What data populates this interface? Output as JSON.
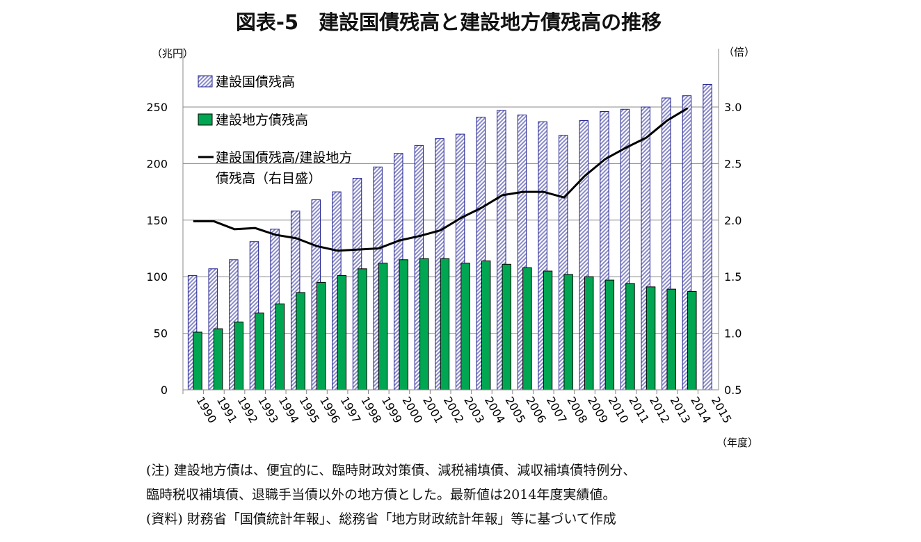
{
  "chart_data": {
    "type": "bar",
    "title": "図表-5　建設国債残高と建設地方債残高の推移",
    "ylabel_left": "（兆円）",
    "ylabel_right": "（倍）",
    "xlabel": "（年度）",
    "ylim": [
      0,
      300
    ],
    "yticks": [
      0,
      50,
      100,
      150,
      200,
      250
    ],
    "ylim_right": [
      0.5,
      3.5
    ],
    "yticks_right": [
      "0.5",
      "1.0",
      "1.5",
      "2.0",
      "2.5",
      "3.0"
    ],
    "grid": true,
    "legend_position": "top-left",
    "categories": [
      "1990",
      "1991",
      "1992",
      "1993",
      "1994",
      "1995",
      "1996",
      "1997",
      "1998",
      "1999",
      "2000",
      "2001",
      "2002",
      "2003",
      "2004",
      "2005",
      "2006",
      "2007",
      "2008",
      "2009",
      "2010",
      "2011",
      "2012",
      "2013",
      "2014",
      "2015"
    ],
    "series": [
      {
        "name": "建設国債残高",
        "type": "bar",
        "axis": "left",
        "color": "#1f1f8f",
        "values": [
          101,
          107,
          115,
          131,
          142,
          158,
          168,
          175,
          187,
          197,
          209,
          216,
          222,
          226,
          241,
          247,
          243,
          237,
          225,
          238,
          246,
          248,
          250,
          258,
          260,
          270
        ]
      },
      {
        "name": "建設地方債残高",
        "type": "bar",
        "axis": "left",
        "color": "#00a651",
        "values": [
          51,
          54,
          60,
          68,
          76,
          86,
          95,
          101,
          107,
          112,
          115,
          116,
          116,
          112,
          114,
          111,
          108,
          105,
          102,
          100,
          97,
          94,
          91,
          89,
          87,
          null
        ]
      },
      {
        "name": "建設国債残高/建設地方債残高（右目盛）",
        "type": "line",
        "axis": "right",
        "color": "#000000",
        "values": [
          1.99,
          1.99,
          1.92,
          1.93,
          1.87,
          1.84,
          1.77,
          1.73,
          1.74,
          1.75,
          1.82,
          1.86,
          1.91,
          2.02,
          2.11,
          2.22,
          2.25,
          2.25,
          2.2,
          2.39,
          2.54,
          2.64,
          2.73,
          2.88,
          2.99,
          null
        ]
      }
    ],
    "legend": [
      "建設国債残高",
      "建設地方債残高",
      "建設国債残高/建設地方",
      "債残高（右目盛）"
    ]
  },
  "notes": [
    "(注) 建設地方債は、便宜的に、臨時財政対策債、減税補填債、減収補填債特例分、",
    "臨時税収補填債、退職手当債以外の地方債とした。最新値は2014年度実績値。",
    "(資料) 財務省「国債統計年報」、総務省「地方財政統計年報」等に基づいて作成"
  ]
}
